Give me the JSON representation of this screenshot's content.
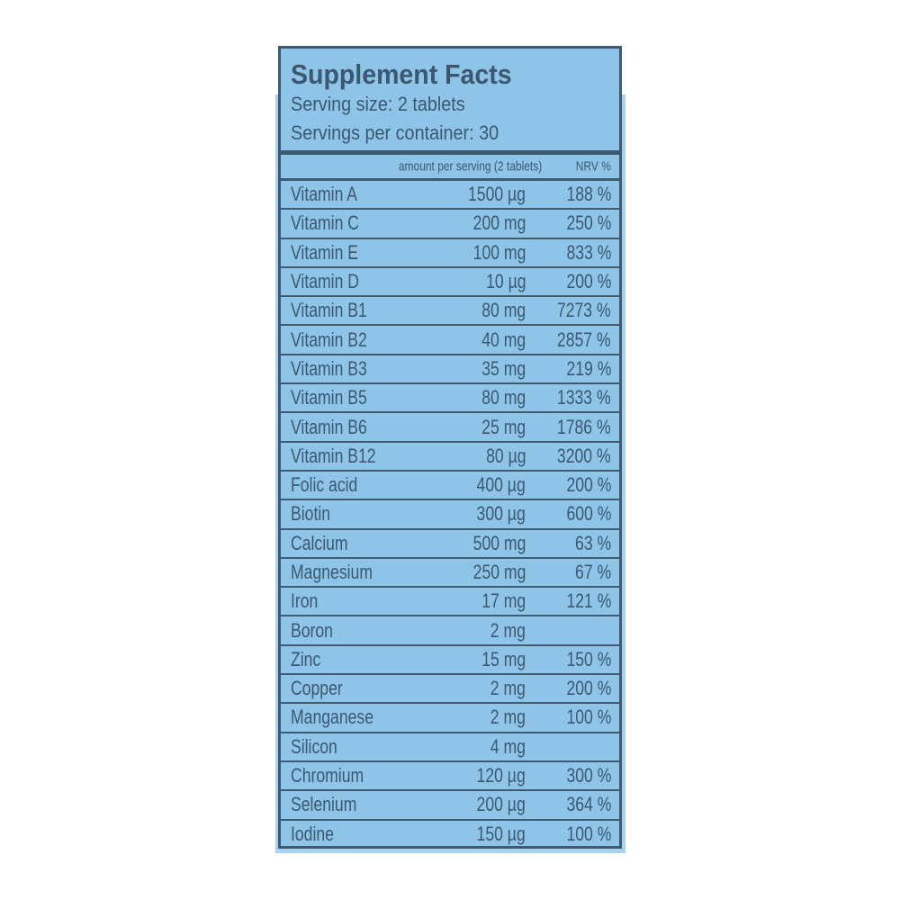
{
  "header": {
    "title": "Supplement Facts",
    "serving_size": "Serving size: 2 tablets",
    "servings_per_container": "Servings per container: 30"
  },
  "columns": {
    "amount": "amount per serving (2 tablets)",
    "nrv": "NRV %"
  },
  "colors": {
    "background": "#8ec4e7",
    "border": "#3d5b73",
    "text": "#3b5870"
  },
  "rows": [
    {
      "name": "Vitamin A",
      "amount": "1500 µg",
      "nrv": "188 %"
    },
    {
      "name": "Vitamin C",
      "amount": "200 mg",
      "nrv": "250 %"
    },
    {
      "name": "Vitamin E",
      "amount": "100 mg",
      "nrv": "833 %"
    },
    {
      "name": "Vitamin D",
      "amount": "10 µg",
      "nrv": "200 %"
    },
    {
      "name": "Vitamin B1",
      "amount": "80 mg",
      "nrv": "7273 %"
    },
    {
      "name": "Vitamin B2",
      "amount": "40 mg",
      "nrv": "2857 %"
    },
    {
      "name": "Vitamin B3",
      "amount": "35 mg",
      "nrv": "219 %"
    },
    {
      "name": "Vitamin B5",
      "amount": "80 mg",
      "nrv": "1333 %"
    },
    {
      "name": "Vitamin B6",
      "amount": "25 mg",
      "nrv": "1786 %"
    },
    {
      "name": "Vitamin B12",
      "amount": "80 µg",
      "nrv": "3200 %"
    },
    {
      "name": "Folic acid",
      "amount": "400 µg",
      "nrv": "200 %"
    },
    {
      "name": "Biotin",
      "amount": "300 µg",
      "nrv": "600 %"
    },
    {
      "name": "Calcium",
      "amount": "500 mg",
      "nrv": "63 %"
    },
    {
      "name": "Magnesium",
      "amount": "250 mg",
      "nrv": "67 %"
    },
    {
      "name": "Iron",
      "amount": "17 mg",
      "nrv": "121 %"
    },
    {
      "name": "Boron",
      "amount": "2 mg",
      "nrv": ""
    },
    {
      "name": "Zinc",
      "amount": "15 mg",
      "nrv": "150 %"
    },
    {
      "name": "Copper",
      "amount": "2 mg",
      "nrv": "200 %"
    },
    {
      "name": "Manganese",
      "amount": "2 mg",
      "nrv": "100 %"
    },
    {
      "name": "Silicon",
      "amount": "4 mg",
      "nrv": ""
    },
    {
      "name": "Chromium",
      "amount": "120 µg",
      "nrv": "300 %"
    },
    {
      "name": "Selenium",
      "amount": "200 µg",
      "nrv": "364 %"
    },
    {
      "name": "Iodine",
      "amount": "150 µg",
      "nrv": "100 %"
    }
  ]
}
